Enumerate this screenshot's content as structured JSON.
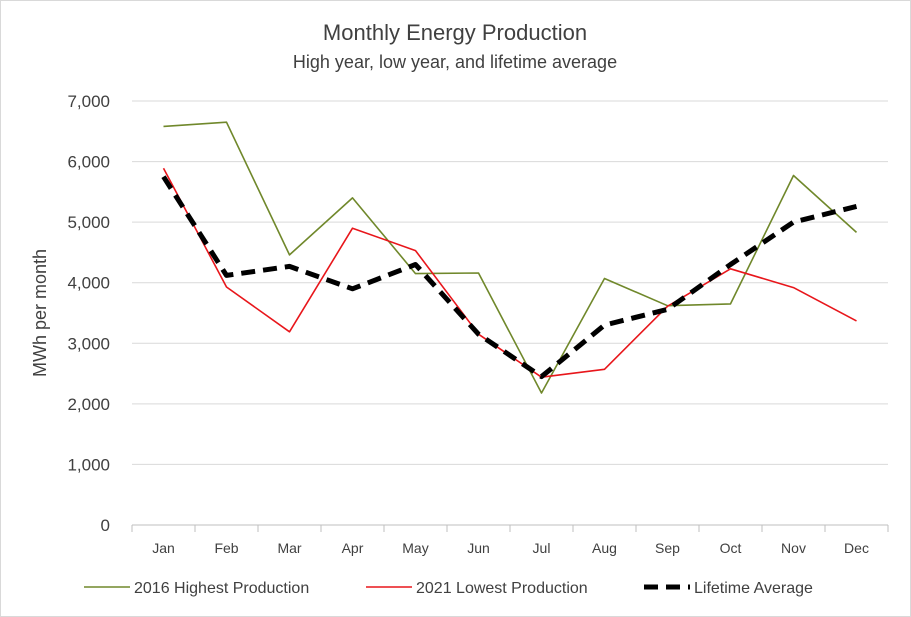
{
  "chart_data": {
    "type": "line",
    "title": "Monthly Energy Production",
    "subtitle": "High year, low year, and lifetime average",
    "xlabel": "",
    "ylabel": "MWh per month",
    "ylim": [
      0,
      7000
    ],
    "yticks": [
      "0",
      "1,000",
      "2,000",
      "3,000",
      "4,000",
      "5,000",
      "6,000",
      "7,000"
    ],
    "grid": true,
    "legend_position": "bottom",
    "categories": [
      "Jan",
      "Feb",
      "Mar",
      "Apr",
      "May",
      "Jun",
      "Jul",
      "Aug",
      "Sep",
      "Oct",
      "Nov",
      "Dec"
    ],
    "series": [
      {
        "name": "2016 Highest Production",
        "color": "#70882b",
        "style": "solid",
        "values": [
          6580,
          6650,
          4460,
          5400,
          4150,
          4160,
          2180,
          4070,
          3620,
          3650,
          5770,
          4830
        ]
      },
      {
        "name": "2021 Lowest Production",
        "color": "#e8161b",
        "style": "solid",
        "values": [
          5890,
          3930,
          3190,
          4900,
          4530,
          3150,
          2440,
          2570,
          3610,
          4230,
          3920,
          3370
        ]
      },
      {
        "name": "Lifetime Average",
        "color": "#000000",
        "style": "dashed",
        "values": [
          5750,
          4120,
          4270,
          3900,
          4300,
          3150,
          2450,
          3300,
          3560,
          4300,
          5000,
          5260
        ]
      }
    ]
  }
}
